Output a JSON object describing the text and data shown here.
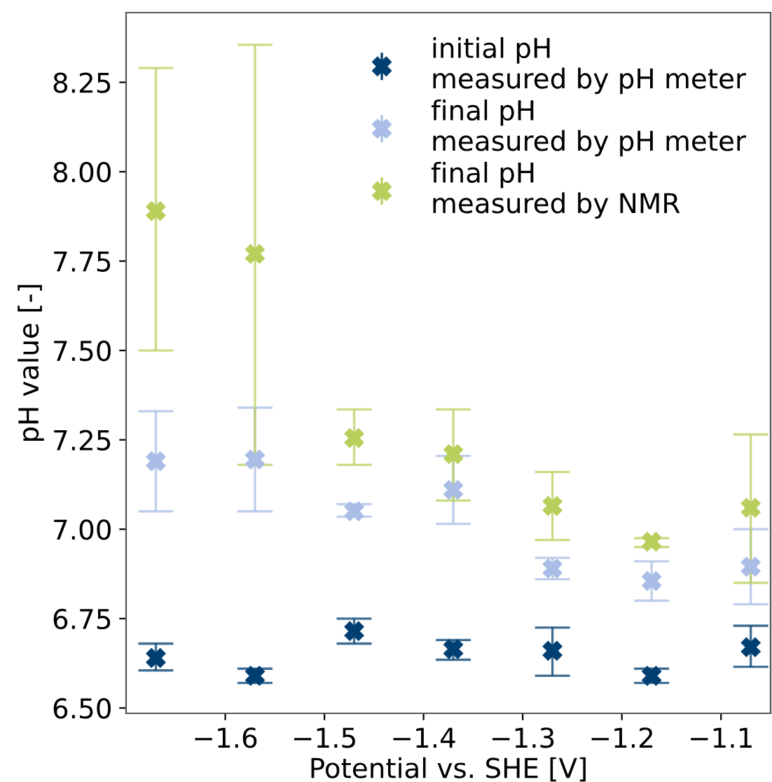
{
  "chart_data": {
    "type": "scatter",
    "xlabel": "Potential vs. SHE [V]",
    "ylabel": "pH value [-]",
    "x": [
      -1.67,
      -1.57,
      -1.47,
      -1.37,
      -1.27,
      -1.17,
      -1.07
    ],
    "series": [
      {
        "name": "initial pH\nmeasured by pH meter",
        "color": "#003f72",
        "values": [
          6.64,
          6.59,
          6.715,
          6.665,
          6.66,
          6.59,
          6.67
        ],
        "errors": [
          [
            6.605,
            6.68
          ],
          [
            6.57,
            6.61
          ],
          [
            6.68,
            6.75
          ],
          [
            6.635,
            6.69
          ],
          [
            6.59,
            6.725
          ],
          [
            6.57,
            6.61
          ],
          [
            6.615,
            6.73
          ]
        ]
      },
      {
        "name": "final pH\nmeasured by pH meter",
        "color": "#a9bde6",
        "values": [
          7.19,
          7.195,
          7.05,
          7.11,
          6.89,
          6.855,
          6.895
        ],
        "errors": [
          [
            7.05,
            7.33
          ],
          [
            7.05,
            7.34
          ],
          [
            7.035,
            7.07
          ],
          0.095,
          [
            6.86,
            6.92
          ],
          [
            6.8,
            6.91
          ],
          [
            6.79,
            7.0
          ]
        ]
      },
      {
        "name": "final pH\nmeasured by NMR",
        "color": "#b9cf5c",
        "values": [
          7.89,
          7.77,
          7.255,
          7.21,
          7.065,
          6.965,
          7.06
        ],
        "errors": [
          [
            7.5,
            8.29
          ],
          [
            7.18,
            8.355
          ],
          [
            7.18,
            7.335
          ],
          [
            7.08,
            7.335
          ],
          [
            6.97,
            7.16
          ],
          [
            6.95,
            6.975
          ],
          [
            6.85,
            7.265
          ]
        ]
      }
    ],
    "xlim": [
      -1.7,
      -1.05
    ],
    "xticks": [
      {
        "value": -1.6,
        "label": "−1.6"
      },
      {
        "value": -1.5,
        "label": "−1.5"
      },
      {
        "value": -1.4,
        "label": "−1.4"
      },
      {
        "value": -1.3,
        "label": "−1.3"
      },
      {
        "value": -1.2,
        "label": "−1.2"
      },
      {
        "value": -1.1,
        "label": "−1.1"
      }
    ],
    "ylim": [
      6.485,
      8.445
    ],
    "yticks": [
      {
        "value": 6.5,
        "label": "6.50"
      },
      {
        "value": 6.75,
        "label": "6.75"
      },
      {
        "value": 7.0,
        "label": "7.00"
      },
      {
        "value": 7.25,
        "label": "7.25"
      },
      {
        "value": 7.5,
        "label": "7.50"
      },
      {
        "value": 7.75,
        "label": "7.75"
      },
      {
        "value": 8.0,
        "label": "8.00"
      },
      {
        "value": 8.25,
        "label": "8.25"
      }
    ],
    "marker": "cross",
    "legend": "top right",
    "grid": false
  }
}
